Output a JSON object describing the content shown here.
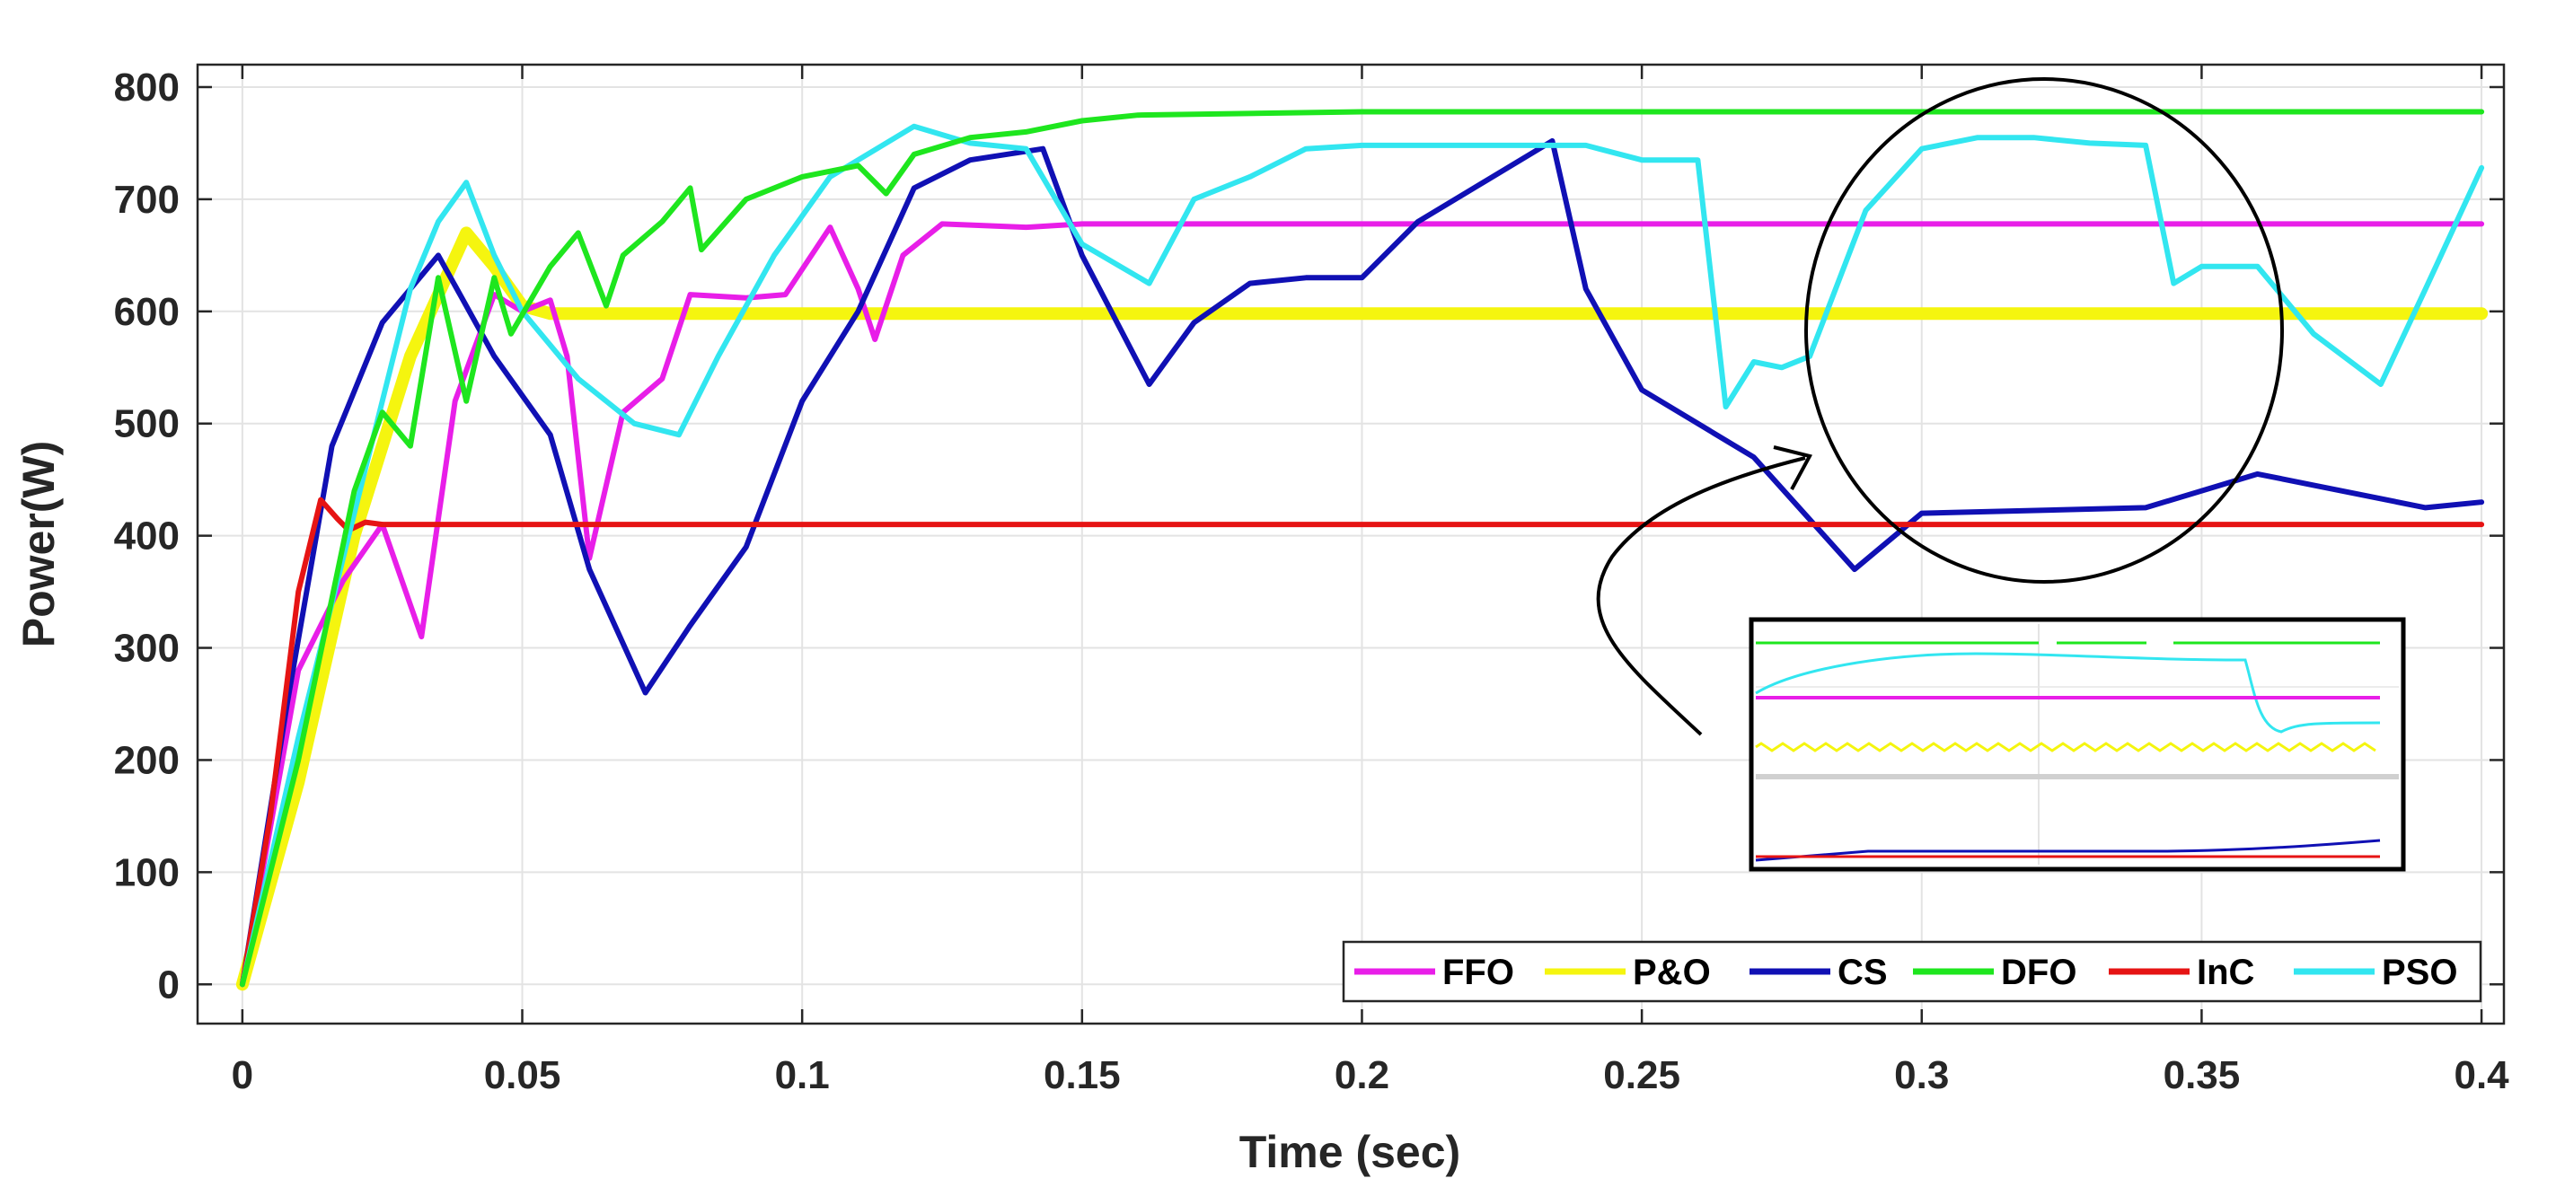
{
  "chart_data": {
    "type": "line",
    "title": "",
    "xlabel": "Time (sec)",
    "ylabel": "Power(W)",
    "xlim": [
      -0.008,
      0.404
    ],
    "ylim": [
      -35,
      820
    ],
    "xticks": [
      0,
      0.05,
      0.1,
      0.15,
      0.2,
      0.25,
      0.3,
      0.35,
      0.4
    ],
    "xtick_labels": [
      "0",
      "0.05",
      "0.1",
      "0.15",
      "0.2",
      "0.25",
      "0.3",
      "0.35",
      "0.4"
    ],
    "yticks": [
      0,
      100,
      200,
      300,
      400,
      500,
      600,
      700,
      800
    ],
    "ytick_labels": [
      "0",
      "100",
      "200",
      "300",
      "400",
      "500",
      "600",
      "700",
      "800"
    ],
    "grid": true,
    "legend_position": "bottom-right",
    "series": [
      {
        "name": "FFO",
        "color": "#e81ee8",
        "x": [
          0,
          0.01,
          0.018,
          0.025,
          0.032,
          0.038,
          0.045,
          0.05,
          0.055,
          0.058,
          0.062,
          0.068,
          0.075,
          0.08,
          0.09,
          0.097,
          0.105,
          0.11,
          0.113,
          0.118,
          0.125,
          0.14,
          0.15,
          0.2,
          0.3,
          0.4
        ],
        "y": [
          0,
          280,
          360,
          410,
          310,
          520,
          615,
          600,
          610,
          560,
          380,
          510,
          540,
          615,
          612,
          615,
          675,
          620,
          575,
          650,
          678,
          675,
          678,
          678,
          678,
          678
        ]
      },
      {
        "name": "P&O",
        "color": "#f5f50f",
        "x": [
          0,
          0.01,
          0.02,
          0.03,
          0.04,
          0.045,
          0.05,
          0.055,
          0.1,
          0.2,
          0.3,
          0.4
        ],
        "y": [
          0,
          180,
          400,
          560,
          670,
          640,
          605,
          598,
          598,
          598,
          598,
          598
        ]
      },
      {
        "name": "CS",
        "color": "#1010b4",
        "x": [
          0,
          0.008,
          0.016,
          0.025,
          0.035,
          0.045,
          0.055,
          0.062,
          0.072,
          0.08,
          0.09,
          0.1,
          0.11,
          0.12,
          0.13,
          0.143,
          0.15,
          0.162,
          0.17,
          0.18,
          0.19,
          0.2,
          0.21,
          0.22,
          0.234,
          0.24,
          0.25,
          0.27,
          0.288,
          0.3,
          0.34,
          0.36,
          0.37,
          0.39,
          0.4
        ],
        "y": [
          0,
          250,
          480,
          590,
          650,
          560,
          490,
          370,
          260,
          320,
          390,
          520,
          600,
          710,
          735,
          745,
          650,
          535,
          590,
          625,
          630,
          630,
          680,
          710,
          752,
          620,
          530,
          470,
          370,
          420,
          425,
          455,
          445,
          425,
          430
        ]
      },
      {
        "name": "DFO",
        "color": "#1ee61e",
        "x": [
          0,
          0.01,
          0.02,
          0.025,
          0.03,
          0.035,
          0.04,
          0.045,
          0.048,
          0.055,
          0.06,
          0.065,
          0.068,
          0.075,
          0.08,
          0.082,
          0.09,
          0.1,
          0.11,
          0.115,
          0.12,
          0.13,
          0.14,
          0.15,
          0.16,
          0.2,
          0.25,
          0.3,
          0.4
        ],
        "y": [
          0,
          200,
          440,
          510,
          480,
          630,
          520,
          630,
          580,
          640,
          670,
          605,
          650,
          680,
          710,
          655,
          700,
          720,
          730,
          705,
          740,
          755,
          760,
          770,
          775,
          778,
          778,
          778,
          778
        ]
      },
      {
        "name": "InC",
        "color": "#e61414",
        "x": [
          0,
          0.005,
          0.01,
          0.014,
          0.017,
          0.019,
          0.022,
          0.025,
          0.03,
          0.1,
          0.2,
          0.3,
          0.4
        ],
        "y": [
          0,
          150,
          350,
          432,
          415,
          405,
          412,
          410,
          410,
          410,
          410,
          410,
          410
        ]
      },
      {
        "name": "PSO",
        "color": "#32e6f0",
        "x": [
          0,
          0.01,
          0.02,
          0.03,
          0.035,
          0.04,
          0.045,
          0.05,
          0.06,
          0.07,
          0.078,
          0.085,
          0.095,
          0.105,
          0.12,
          0.13,
          0.14,
          0.15,
          0.162,
          0.17,
          0.18,
          0.19,
          0.2,
          0.22,
          0.24,
          0.25,
          0.26,
          0.265,
          0.27,
          0.275,
          0.28,
          0.29,
          0.3,
          0.31,
          0.32,
          0.33,
          0.34,
          0.345,
          0.35,
          0.355,
          0.36,
          0.37,
          0.382,
          0.39,
          0.4
        ],
        "y": [
          0,
          220,
          420,
          620,
          680,
          715,
          650,
          600,
          540,
          500,
          490,
          560,
          650,
          720,
          765,
          750,
          745,
          660,
          625,
          700,
          720,
          745,
          748,
          748,
          748,
          735,
          735,
          515,
          555,
          550,
          560,
          690,
          745,
          755,
          755,
          750,
          748,
          625,
          640,
          640,
          640,
          580,
          535,
          620,
          728
        ]
      }
    ],
    "annotations": [
      "circle highlighting t=0.28-0.37 s region",
      "zoomed inset of highlighted region",
      "curved arrow pointing from inset to circle"
    ]
  }
}
